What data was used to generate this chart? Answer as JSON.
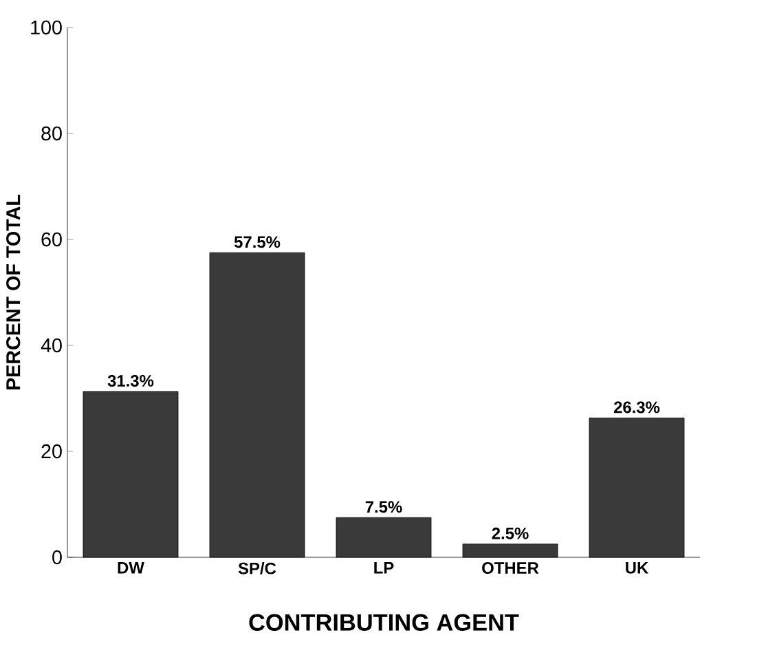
{
  "chart_data": {
    "type": "bar",
    "xlabel": "CONTRIBUTING AGENT",
    "ylabel": "PERCENT OF TOTAL",
    "categories": [
      "DW",
      "SP/C",
      "LP",
      "OTHER",
      "UK"
    ],
    "values": [
      31.3,
      57.5,
      7.5,
      2.5,
      26.3
    ],
    "value_labels": [
      "31.3%",
      "57.5%",
      "7.5%",
      "2.5%",
      "26.3%"
    ],
    "color": "#3a3a3a",
    "ylim": [
      0,
      100
    ],
    "yticks": [
      0,
      20,
      40,
      60,
      80,
      100
    ]
  }
}
